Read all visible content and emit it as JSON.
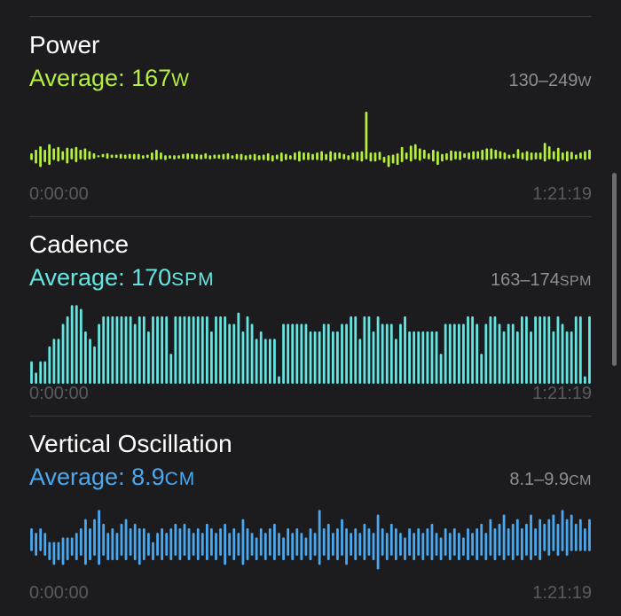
{
  "colors": {
    "power": "#b4f03c",
    "cadence": "#63e6e2",
    "vertical_oscillation": "#4aa8f0",
    "background": "#1c1c1e",
    "secondary_text": "#8e8e93"
  },
  "power": {
    "title": "Power",
    "average_prefix": "Average: ",
    "average_value": "167",
    "average_unit": "W",
    "range_value": "130–249",
    "range_unit": "W",
    "time_start": "0:00:00",
    "time_end": "1:21:19"
  },
  "cadence": {
    "title": "Cadence",
    "average_prefix": "Average: ",
    "average_value": "170",
    "average_unit": "SPM",
    "range_value": "163–174",
    "range_unit": "SPM",
    "time_start": "0:00:00",
    "time_end": "1:21:19"
  },
  "vertical_oscillation": {
    "title": "Vertical Oscillation",
    "average_prefix": "Average: ",
    "average_value": "8.9",
    "average_unit": "CM",
    "range_value": "8.1–9.9",
    "range_unit": "CM",
    "time_start": "0:00:00",
    "time_end": "1:21:19"
  },
  "chart_data": [
    {
      "type": "bar",
      "name": "power",
      "style": "range",
      "ylim": [
        130,
        249
      ],
      "ranges": [
        [
          165,
          175
        ],
        [
          160,
          180
        ],
        [
          155,
          185
        ],
        [
          162,
          180
        ],
        [
          158,
          188
        ],
        [
          165,
          182
        ],
        [
          163,
          184
        ],
        [
          165,
          178
        ],
        [
          160,
          183
        ],
        [
          166,
          182
        ],
        [
          162,
          184
        ],
        [
          166,
          180
        ],
        [
          165,
          182
        ],
        [
          166,
          178
        ],
        [
          167,
          175
        ],
        [
          169,
          172
        ],
        [
          169,
          174
        ],
        [
          167,
          175
        ],
        [
          168,
          173
        ],
        [
          168,
          173
        ],
        [
          167,
          174
        ],
        [
          167,
          173
        ],
        [
          167,
          174
        ],
        [
          166,
          174
        ],
        [
          166,
          174
        ],
        [
          167,
          172
        ],
        [
          168,
          173
        ],
        [
          165,
          176
        ],
        [
          165,
          180
        ],
        [
          166,
          176
        ],
        [
          165,
          172
        ],
        [
          167,
          172
        ],
        [
          166,
          172
        ],
        [
          167,
          172
        ],
        [
          167,
          174
        ],
        [
          166,
          175
        ],
        [
          167,
          174
        ],
        [
          166,
          174
        ],
        [
          166,
          173
        ],
        [
          167,
          175
        ],
        [
          166,
          172
        ],
        [
          167,
          173
        ],
        [
          167,
          173
        ],
        [
          166,
          174
        ],
        [
          166,
          175
        ],
        [
          167,
          172
        ],
        [
          166,
          174
        ],
        [
          165,
          174
        ],
        [
          165,
          172
        ],
        [
          166,
          173
        ],
        [
          164,
          174
        ],
        [
          165,
          172
        ],
        [
          165,
          173
        ],
        [
          164,
          175
        ],
        [
          163,
          172
        ],
        [
          166,
          173
        ],
        [
          163,
          176
        ],
        [
          165,
          174
        ],
        [
          166,
          172
        ],
        [
          165,
          176
        ],
        [
          163,
          178
        ],
        [
          165,
          176
        ],
        [
          165,
          176
        ],
        [
          165,
          174
        ],
        [
          165,
          176
        ],
        [
          164,
          178
        ],
        [
          165,
          174
        ],
        [
          163,
          178
        ],
        [
          165,
          176
        ],
        [
          167,
          176
        ],
        [
          166,
          174
        ],
        [
          165,
          172
        ],
        [
          166,
          176
        ],
        [
          164,
          177
        ],
        [
          163,
          178
        ],
        [
          166,
          235
        ],
        [
          163,
          176
        ],
        [
          163,
          176
        ],
        [
          165,
          177
        ],
        [
          161,
          170
        ],
        [
          155,
          172
        ],
        [
          160,
          173
        ],
        [
          158,
          175
        ],
        [
          162,
          184
        ],
        [
          166,
          176
        ],
        [
          163,
          186
        ],
        [
          166,
          188
        ],
        [
          164,
          182
        ],
        [
          167,
          180
        ],
        [
          166,
          175
        ],
        [
          163,
          180
        ],
        [
          158,
          178
        ],
        [
          163,
          174
        ],
        [
          165,
          175
        ],
        [
          164,
          179
        ],
        [
          166,
          178
        ],
        [
          165,
          178
        ],
        [
          168,
          175
        ],
        [
          166,
          176
        ],
        [
          166,
          178
        ],
        [
          167,
          178
        ],
        [
          165,
          180
        ],
        [
          165,
          182
        ],
        [
          166,
          182
        ],
        [
          167,
          180
        ],
        [
          167,
          178
        ],
        [
          166,
          176
        ],
        [
          167,
          173
        ],
        [
          168,
          174
        ],
        [
          167,
          181
        ],
        [
          166,
          176
        ],
        [
          164,
          178
        ],
        [
          165,
          176
        ],
        [
          166,
          176
        ],
        [
          166,
          176
        ],
        [
          163,
          190
        ],
        [
          166,
          185
        ],
        [
          166,
          178
        ],
        [
          163,
          183
        ],
        [
          165,
          176
        ],
        [
          163,
          178
        ],
        [
          166,
          177
        ],
        [
          166,
          173
        ],
        [
          167,
          176
        ],
        [
          165,
          178
        ],
        [
          166,
          180
        ]
      ]
    },
    {
      "type": "bar",
      "name": "cadence",
      "ylim": [
        163,
        174
      ],
      "values": [
        166,
        164.5,
        166,
        166,
        168,
        169,
        169,
        171,
        172,
        173.5,
        173.5,
        173,
        170,
        169,
        168,
        171,
        172,
        172,
        172,
        172,
        172,
        172,
        172,
        171,
        172,
        172,
        170,
        172,
        172,
        172,
        172,
        167,
        172,
        172,
        172,
        172,
        172,
        172,
        172,
        172,
        170,
        172,
        172,
        172,
        171,
        171,
        172.5,
        170,
        172,
        171,
        169,
        170,
        169,
        169,
        169,
        164,
        171,
        171,
        171,
        171,
        171,
        171,
        170,
        170,
        170,
        171,
        171,
        170,
        170,
        171,
        171,
        172,
        172,
        169,
        172,
        172,
        170,
        172,
        171,
        171,
        171,
        169,
        171,
        172,
        170,
        170,
        170,
        170,
        170,
        170,
        170,
        167,
        171,
        171,
        171,
        171,
        171,
        172,
        172,
        171,
        167,
        171,
        172,
        172,
        171,
        170,
        171,
        171,
        170,
        172,
        172,
        170,
        172,
        172,
        172,
        172,
        170,
        172,
        171,
        170,
        170,
        172,
        172,
        164,
        172
      ]
    },
    {
      "type": "bar",
      "name": "vertical_oscillation",
      "style": "range",
      "ylim": [
        8.1,
        9.9
      ],
      "ranges": [
        [
          8.8,
          9.3
        ],
        [
          8.7,
          9.2
        ],
        [
          8.8,
          9.3
        ],
        [
          8.7,
          9.2
        ],
        [
          8.6,
          9.0
        ],
        [
          8.5,
          9.0
        ],
        [
          8.6,
          9.0
        ],
        [
          8.5,
          9.1
        ],
        [
          8.6,
          9.1
        ],
        [
          8.7,
          9.1
        ],
        [
          8.6,
          9.2
        ],
        [
          8.7,
          9.3
        ],
        [
          8.5,
          9.5
        ],
        [
          8.6,
          9.3
        ],
        [
          8.7,
          9.5
        ],
        [
          8.5,
          9.7
        ],
        [
          8.7,
          9.4
        ],
        [
          8.6,
          9.2
        ],
        [
          8.6,
          9.3
        ],
        [
          8.6,
          9.2
        ],
        [
          8.7,
          9.4
        ],
        [
          8.6,
          9.5
        ],
        [
          8.7,
          9.3
        ],
        [
          8.6,
          9.4
        ],
        [
          8.5,
          9.3
        ],
        [
          8.6,
          9.3
        ],
        [
          8.7,
          9.2
        ],
        [
          8.6,
          9.0
        ],
        [
          8.7,
          9.2
        ],
        [
          8.6,
          9.3
        ],
        [
          8.7,
          9.2
        ],
        [
          8.6,
          9.3
        ],
        [
          8.7,
          9.4
        ],
        [
          8.6,
          9.3
        ],
        [
          8.7,
          9.4
        ],
        [
          8.6,
          9.3
        ],
        [
          8.7,
          9.2
        ],
        [
          8.6,
          9.3
        ],
        [
          8.7,
          9.2
        ],
        [
          8.6,
          9.4
        ],
        [
          8.7,
          9.3
        ],
        [
          8.6,
          9.2
        ],
        [
          8.7,
          9.3
        ],
        [
          8.5,
          9.4
        ],
        [
          8.7,
          9.2
        ],
        [
          8.6,
          9.3
        ],
        [
          8.7,
          9.2
        ],
        [
          8.5,
          9.5
        ],
        [
          8.6,
          9.3
        ],
        [
          8.7,
          9.2
        ],
        [
          8.6,
          9.1
        ],
        [
          8.7,
          9.3
        ],
        [
          8.6,
          9.2
        ],
        [
          8.7,
          9.3
        ],
        [
          8.6,
          9.4
        ],
        [
          8.7,
          9.2
        ],
        [
          8.6,
          9.1
        ],
        [
          8.7,
          9.3
        ],
        [
          8.6,
          9.2
        ],
        [
          8.7,
          9.3
        ],
        [
          8.6,
          9.2
        ],
        [
          8.7,
          9.1
        ],
        [
          8.6,
          9.3
        ],
        [
          8.7,
          9.2
        ],
        [
          8.5,
          9.7
        ],
        [
          8.7,
          9.3
        ],
        [
          8.6,
          9.4
        ],
        [
          8.7,
          9.2
        ],
        [
          8.6,
          9.3
        ],
        [
          8.7,
          9.5
        ],
        [
          8.5,
          9.3
        ],
        [
          8.7,
          9.2
        ],
        [
          8.6,
          9.3
        ],
        [
          8.7,
          9.2
        ],
        [
          8.6,
          9.4
        ],
        [
          8.7,
          9.3
        ],
        [
          8.6,
          9.2
        ],
        [
          8.4,
          9.6
        ],
        [
          8.7,
          9.3
        ],
        [
          8.6,
          9.2
        ],
        [
          8.7,
          9.4
        ],
        [
          8.6,
          9.3
        ],
        [
          8.7,
          9.2
        ],
        [
          8.6,
          9.1
        ],
        [
          8.7,
          9.3
        ],
        [
          8.6,
          9.2
        ],
        [
          8.7,
          9.3
        ],
        [
          8.6,
          9.2
        ],
        [
          8.7,
          9.3
        ],
        [
          8.6,
          9.4
        ],
        [
          8.7,
          9.2
        ],
        [
          8.6,
          9.1
        ],
        [
          8.7,
          9.3
        ],
        [
          8.6,
          9.2
        ],
        [
          8.7,
          9.3
        ],
        [
          8.6,
          9.2
        ],
        [
          8.7,
          9.1
        ],
        [
          8.6,
          9.3
        ],
        [
          8.7,
          9.2
        ],
        [
          8.6,
          9.3
        ],
        [
          8.7,
          9.4
        ],
        [
          8.6,
          9.2
        ],
        [
          8.7,
          9.5
        ],
        [
          8.6,
          9.3
        ],
        [
          8.7,
          9.4
        ],
        [
          8.6,
          9.6
        ],
        [
          8.7,
          9.3
        ],
        [
          8.6,
          9.4
        ],
        [
          8.7,
          9.5
        ],
        [
          8.6,
          9.3
        ],
        [
          8.7,
          9.4
        ],
        [
          8.6,
          9.6
        ],
        [
          8.7,
          9.3
        ],
        [
          8.6,
          9.5
        ],
        [
          8.8,
          9.4
        ],
        [
          8.7,
          9.5
        ],
        [
          8.8,
          9.6
        ],
        [
          8.7,
          9.4
        ],
        [
          8.8,
          9.7
        ],
        [
          8.7,
          9.5
        ],
        [
          8.8,
          9.6
        ],
        [
          8.8,
          9.4
        ],
        [
          8.8,
          9.5
        ],
        [
          8.8,
          9.3
        ],
        [
          8.8,
          9.5
        ]
      ]
    }
  ]
}
